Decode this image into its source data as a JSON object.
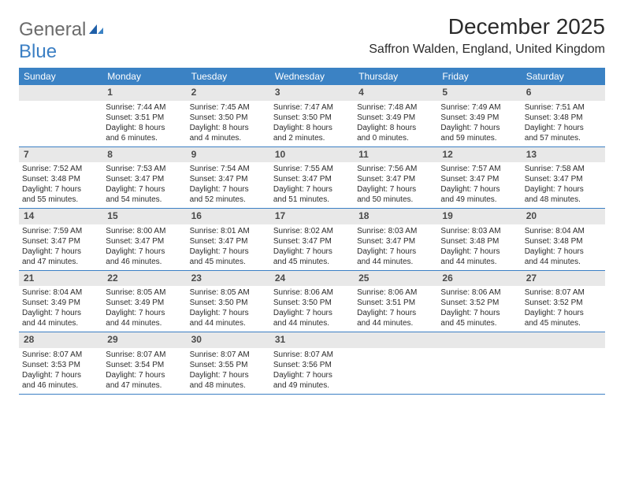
{
  "logo": {
    "textA": "General",
    "textB": "Blue"
  },
  "title": "December 2025",
  "location": "Saffron Walden, England, United Kingdom",
  "styling": {
    "header_bg": "#3b82c4",
    "header_fg": "#ffffff",
    "daynum_bg": "#e8e8e8",
    "daynum_fg": "#4a4a4a",
    "divider": "#3b7fc4",
    "body_bg": "#ffffff",
    "text_color": "#2b2b2b",
    "logo_gray": "#6b6b6b",
    "logo_blue": "#3b7fc4",
    "month_title_fontsize": 28,
    "location_fontsize": 16,
    "header_fontsize": 12,
    "daynum_fontsize": 12,
    "cell_fontsize": 10,
    "columns": 7
  },
  "weekdays": [
    "Sunday",
    "Monday",
    "Tuesday",
    "Wednesday",
    "Thursday",
    "Friday",
    "Saturday"
  ],
  "weeks": [
    {
      "nums": [
        "",
        "1",
        "2",
        "3",
        "4",
        "5",
        "6"
      ],
      "cells": [
        null,
        {
          "sunrise": "Sunrise: 7:44 AM",
          "sunset": "Sunset: 3:51 PM",
          "day1": "Daylight: 8 hours",
          "day2": "and 6 minutes."
        },
        {
          "sunrise": "Sunrise: 7:45 AM",
          "sunset": "Sunset: 3:50 PM",
          "day1": "Daylight: 8 hours",
          "day2": "and 4 minutes."
        },
        {
          "sunrise": "Sunrise: 7:47 AM",
          "sunset": "Sunset: 3:50 PM",
          "day1": "Daylight: 8 hours",
          "day2": "and 2 minutes."
        },
        {
          "sunrise": "Sunrise: 7:48 AM",
          "sunset": "Sunset: 3:49 PM",
          "day1": "Daylight: 8 hours",
          "day2": "and 0 minutes."
        },
        {
          "sunrise": "Sunrise: 7:49 AM",
          "sunset": "Sunset: 3:49 PM",
          "day1": "Daylight: 7 hours",
          "day2": "and 59 minutes."
        },
        {
          "sunrise": "Sunrise: 7:51 AM",
          "sunset": "Sunset: 3:48 PM",
          "day1": "Daylight: 7 hours",
          "day2": "and 57 minutes."
        }
      ]
    },
    {
      "nums": [
        "7",
        "8",
        "9",
        "10",
        "11",
        "12",
        "13"
      ],
      "cells": [
        {
          "sunrise": "Sunrise: 7:52 AM",
          "sunset": "Sunset: 3:48 PM",
          "day1": "Daylight: 7 hours",
          "day2": "and 55 minutes."
        },
        {
          "sunrise": "Sunrise: 7:53 AM",
          "sunset": "Sunset: 3:47 PM",
          "day1": "Daylight: 7 hours",
          "day2": "and 54 minutes."
        },
        {
          "sunrise": "Sunrise: 7:54 AM",
          "sunset": "Sunset: 3:47 PM",
          "day1": "Daylight: 7 hours",
          "day2": "and 52 minutes."
        },
        {
          "sunrise": "Sunrise: 7:55 AM",
          "sunset": "Sunset: 3:47 PM",
          "day1": "Daylight: 7 hours",
          "day2": "and 51 minutes."
        },
        {
          "sunrise": "Sunrise: 7:56 AM",
          "sunset": "Sunset: 3:47 PM",
          "day1": "Daylight: 7 hours",
          "day2": "and 50 minutes."
        },
        {
          "sunrise": "Sunrise: 7:57 AM",
          "sunset": "Sunset: 3:47 PM",
          "day1": "Daylight: 7 hours",
          "day2": "and 49 minutes."
        },
        {
          "sunrise": "Sunrise: 7:58 AM",
          "sunset": "Sunset: 3:47 PM",
          "day1": "Daylight: 7 hours",
          "day2": "and 48 minutes."
        }
      ]
    },
    {
      "nums": [
        "14",
        "15",
        "16",
        "17",
        "18",
        "19",
        "20"
      ],
      "cells": [
        {
          "sunrise": "Sunrise: 7:59 AM",
          "sunset": "Sunset: 3:47 PM",
          "day1": "Daylight: 7 hours",
          "day2": "and 47 minutes."
        },
        {
          "sunrise": "Sunrise: 8:00 AM",
          "sunset": "Sunset: 3:47 PM",
          "day1": "Daylight: 7 hours",
          "day2": "and 46 minutes."
        },
        {
          "sunrise": "Sunrise: 8:01 AM",
          "sunset": "Sunset: 3:47 PM",
          "day1": "Daylight: 7 hours",
          "day2": "and 45 minutes."
        },
        {
          "sunrise": "Sunrise: 8:02 AM",
          "sunset": "Sunset: 3:47 PM",
          "day1": "Daylight: 7 hours",
          "day2": "and 45 minutes."
        },
        {
          "sunrise": "Sunrise: 8:03 AM",
          "sunset": "Sunset: 3:47 PM",
          "day1": "Daylight: 7 hours",
          "day2": "and 44 minutes."
        },
        {
          "sunrise": "Sunrise: 8:03 AM",
          "sunset": "Sunset: 3:48 PM",
          "day1": "Daylight: 7 hours",
          "day2": "and 44 minutes."
        },
        {
          "sunrise": "Sunrise: 8:04 AM",
          "sunset": "Sunset: 3:48 PM",
          "day1": "Daylight: 7 hours",
          "day2": "and 44 minutes."
        }
      ]
    },
    {
      "nums": [
        "21",
        "22",
        "23",
        "24",
        "25",
        "26",
        "27"
      ],
      "cells": [
        {
          "sunrise": "Sunrise: 8:04 AM",
          "sunset": "Sunset: 3:49 PM",
          "day1": "Daylight: 7 hours",
          "day2": "and 44 minutes."
        },
        {
          "sunrise": "Sunrise: 8:05 AM",
          "sunset": "Sunset: 3:49 PM",
          "day1": "Daylight: 7 hours",
          "day2": "and 44 minutes."
        },
        {
          "sunrise": "Sunrise: 8:05 AM",
          "sunset": "Sunset: 3:50 PM",
          "day1": "Daylight: 7 hours",
          "day2": "and 44 minutes."
        },
        {
          "sunrise": "Sunrise: 8:06 AM",
          "sunset": "Sunset: 3:50 PM",
          "day1": "Daylight: 7 hours",
          "day2": "and 44 minutes."
        },
        {
          "sunrise": "Sunrise: 8:06 AM",
          "sunset": "Sunset: 3:51 PM",
          "day1": "Daylight: 7 hours",
          "day2": "and 44 minutes."
        },
        {
          "sunrise": "Sunrise: 8:06 AM",
          "sunset": "Sunset: 3:52 PM",
          "day1": "Daylight: 7 hours",
          "day2": "and 45 minutes."
        },
        {
          "sunrise": "Sunrise: 8:07 AM",
          "sunset": "Sunset: 3:52 PM",
          "day1": "Daylight: 7 hours",
          "day2": "and 45 minutes."
        }
      ]
    },
    {
      "nums": [
        "28",
        "29",
        "30",
        "31",
        "",
        "",
        ""
      ],
      "cells": [
        {
          "sunrise": "Sunrise: 8:07 AM",
          "sunset": "Sunset: 3:53 PM",
          "day1": "Daylight: 7 hours",
          "day2": "and 46 minutes."
        },
        {
          "sunrise": "Sunrise: 8:07 AM",
          "sunset": "Sunset: 3:54 PM",
          "day1": "Daylight: 7 hours",
          "day2": "and 47 minutes."
        },
        {
          "sunrise": "Sunrise: 8:07 AM",
          "sunset": "Sunset: 3:55 PM",
          "day1": "Daylight: 7 hours",
          "day2": "and 48 minutes."
        },
        {
          "sunrise": "Sunrise: 8:07 AM",
          "sunset": "Sunset: 3:56 PM",
          "day1": "Daylight: 7 hours",
          "day2": "and 49 minutes."
        },
        null,
        null,
        null
      ]
    }
  ]
}
